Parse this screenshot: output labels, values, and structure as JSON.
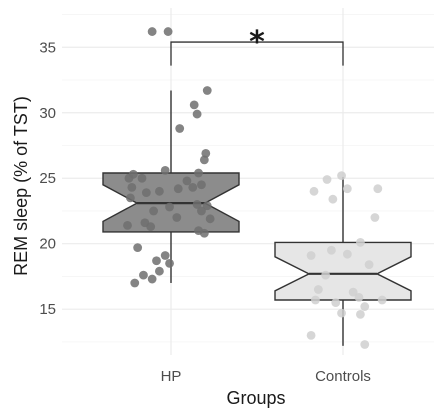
{
  "chart_data": {
    "type": "boxplot",
    "xlabel": "Groups",
    "ylabel": "REM sleep (% of TST)",
    "categories": [
      "HP",
      "Controls"
    ],
    "ylim": [
      11.5,
      38
    ],
    "yticks": [
      15,
      20,
      25,
      30,
      35
    ],
    "grid": true,
    "notched": true,
    "colors": {
      "HP": "#8c8c8c",
      "Controls": "#e6e6e6",
      "points_HP": "#6e6e6e",
      "points_Controls": "#cfcfcf",
      "outline": "#333333"
    },
    "boxes": [
      {
        "name": "HP",
        "whisker_low": 17.0,
        "q1": 20.9,
        "median": 23.1,
        "q3": 25.4,
        "whisker_high": 31.7,
        "notch_low": 21.7,
        "notch_high": 24.5
      },
      {
        "name": "Controls",
        "whisker_low": 12.2,
        "q1": 15.7,
        "median": 17.7,
        "q3": 20.1,
        "whisker_high": 25.1,
        "notch_low": 16.4,
        "notch_high": 19.0
      }
    ],
    "points": {
      "HP": [
        [
          -0.13,
          36.2
        ],
        [
          -0.02,
          36.2
        ],
        [
          0.25,
          31.7
        ],
        [
          0.16,
          30.6
        ],
        [
          0.18,
          29.9
        ],
        [
          0.06,
          28.8
        ],
        [
          0.24,
          26.9
        ],
        [
          0.23,
          26.4
        ],
        [
          0.19,
          25.4
        ],
        [
          -0.26,
          25.3
        ],
        [
          -0.29,
          25.0
        ],
        [
          -0.2,
          25.0
        ],
        [
          -0.04,
          25.6
        ],
        [
          0.11,
          24.8
        ],
        [
          0.21,
          24.5
        ],
        [
          0.15,
          24.3
        ],
        [
          -0.27,
          24.3
        ],
        [
          -0.08,
          24.0
        ],
        [
          0.05,
          24.2
        ],
        [
          -0.17,
          23.9
        ],
        [
          -0.28,
          23.5
        ],
        [
          0.18,
          23.0
        ],
        [
          -0.01,
          22.8
        ],
        [
          0.25,
          22.9
        ],
        [
          0.21,
          22.5
        ],
        [
          -0.12,
          22.5
        ],
        [
          0.04,
          22.0
        ],
        [
          0.27,
          21.9
        ],
        [
          -0.18,
          21.6
        ],
        [
          -0.3,
          21.4
        ],
        [
          -0.14,
          21.3
        ],
        [
          0.19,
          21.0
        ],
        [
          0.23,
          20.8
        ],
        [
          -0.23,
          19.7
        ],
        [
          -0.04,
          19.1
        ],
        [
          -0.1,
          18.7
        ],
        [
          -0.01,
          18.5
        ],
        [
          -0.08,
          17.9
        ],
        [
          -0.19,
          17.6
        ],
        [
          -0.13,
          17.3
        ],
        [
          -0.25,
          17.0
        ]
      ],
      "Controls": [
        [
          0.03,
          24.2
        ],
        [
          0.24,
          24.2
        ],
        [
          -0.2,
          24.0
        ],
        [
          -0.01,
          25.2
        ],
        [
          -0.11,
          24.9
        ],
        [
          -0.07,
          23.4
        ],
        [
          0.22,
          22.0
        ],
        [
          0.12,
          20.1
        ],
        [
          -0.08,
          19.5
        ],
        [
          0.03,
          19.2
        ],
        [
          -0.22,
          19.1
        ],
        [
          0.18,
          18.4
        ],
        [
          -0.12,
          17.6
        ],
        [
          -0.17,
          16.5
        ],
        [
          0.07,
          16.3
        ],
        [
          0.11,
          15.9
        ],
        [
          -0.19,
          15.7
        ],
        [
          -0.05,
          15.5
        ],
        [
          0.15,
          15.2
        ],
        [
          0.27,
          15.7
        ],
        [
          -0.01,
          14.7
        ],
        [
          0.12,
          14.6
        ],
        [
          -0.22,
          13.0
        ],
        [
          0.15,
          12.3
        ]
      ]
    },
    "significance": {
      "label": "*",
      "from": "HP",
      "to": "Controls",
      "y": 35.4,
      "tip_y": 33.6
    }
  }
}
